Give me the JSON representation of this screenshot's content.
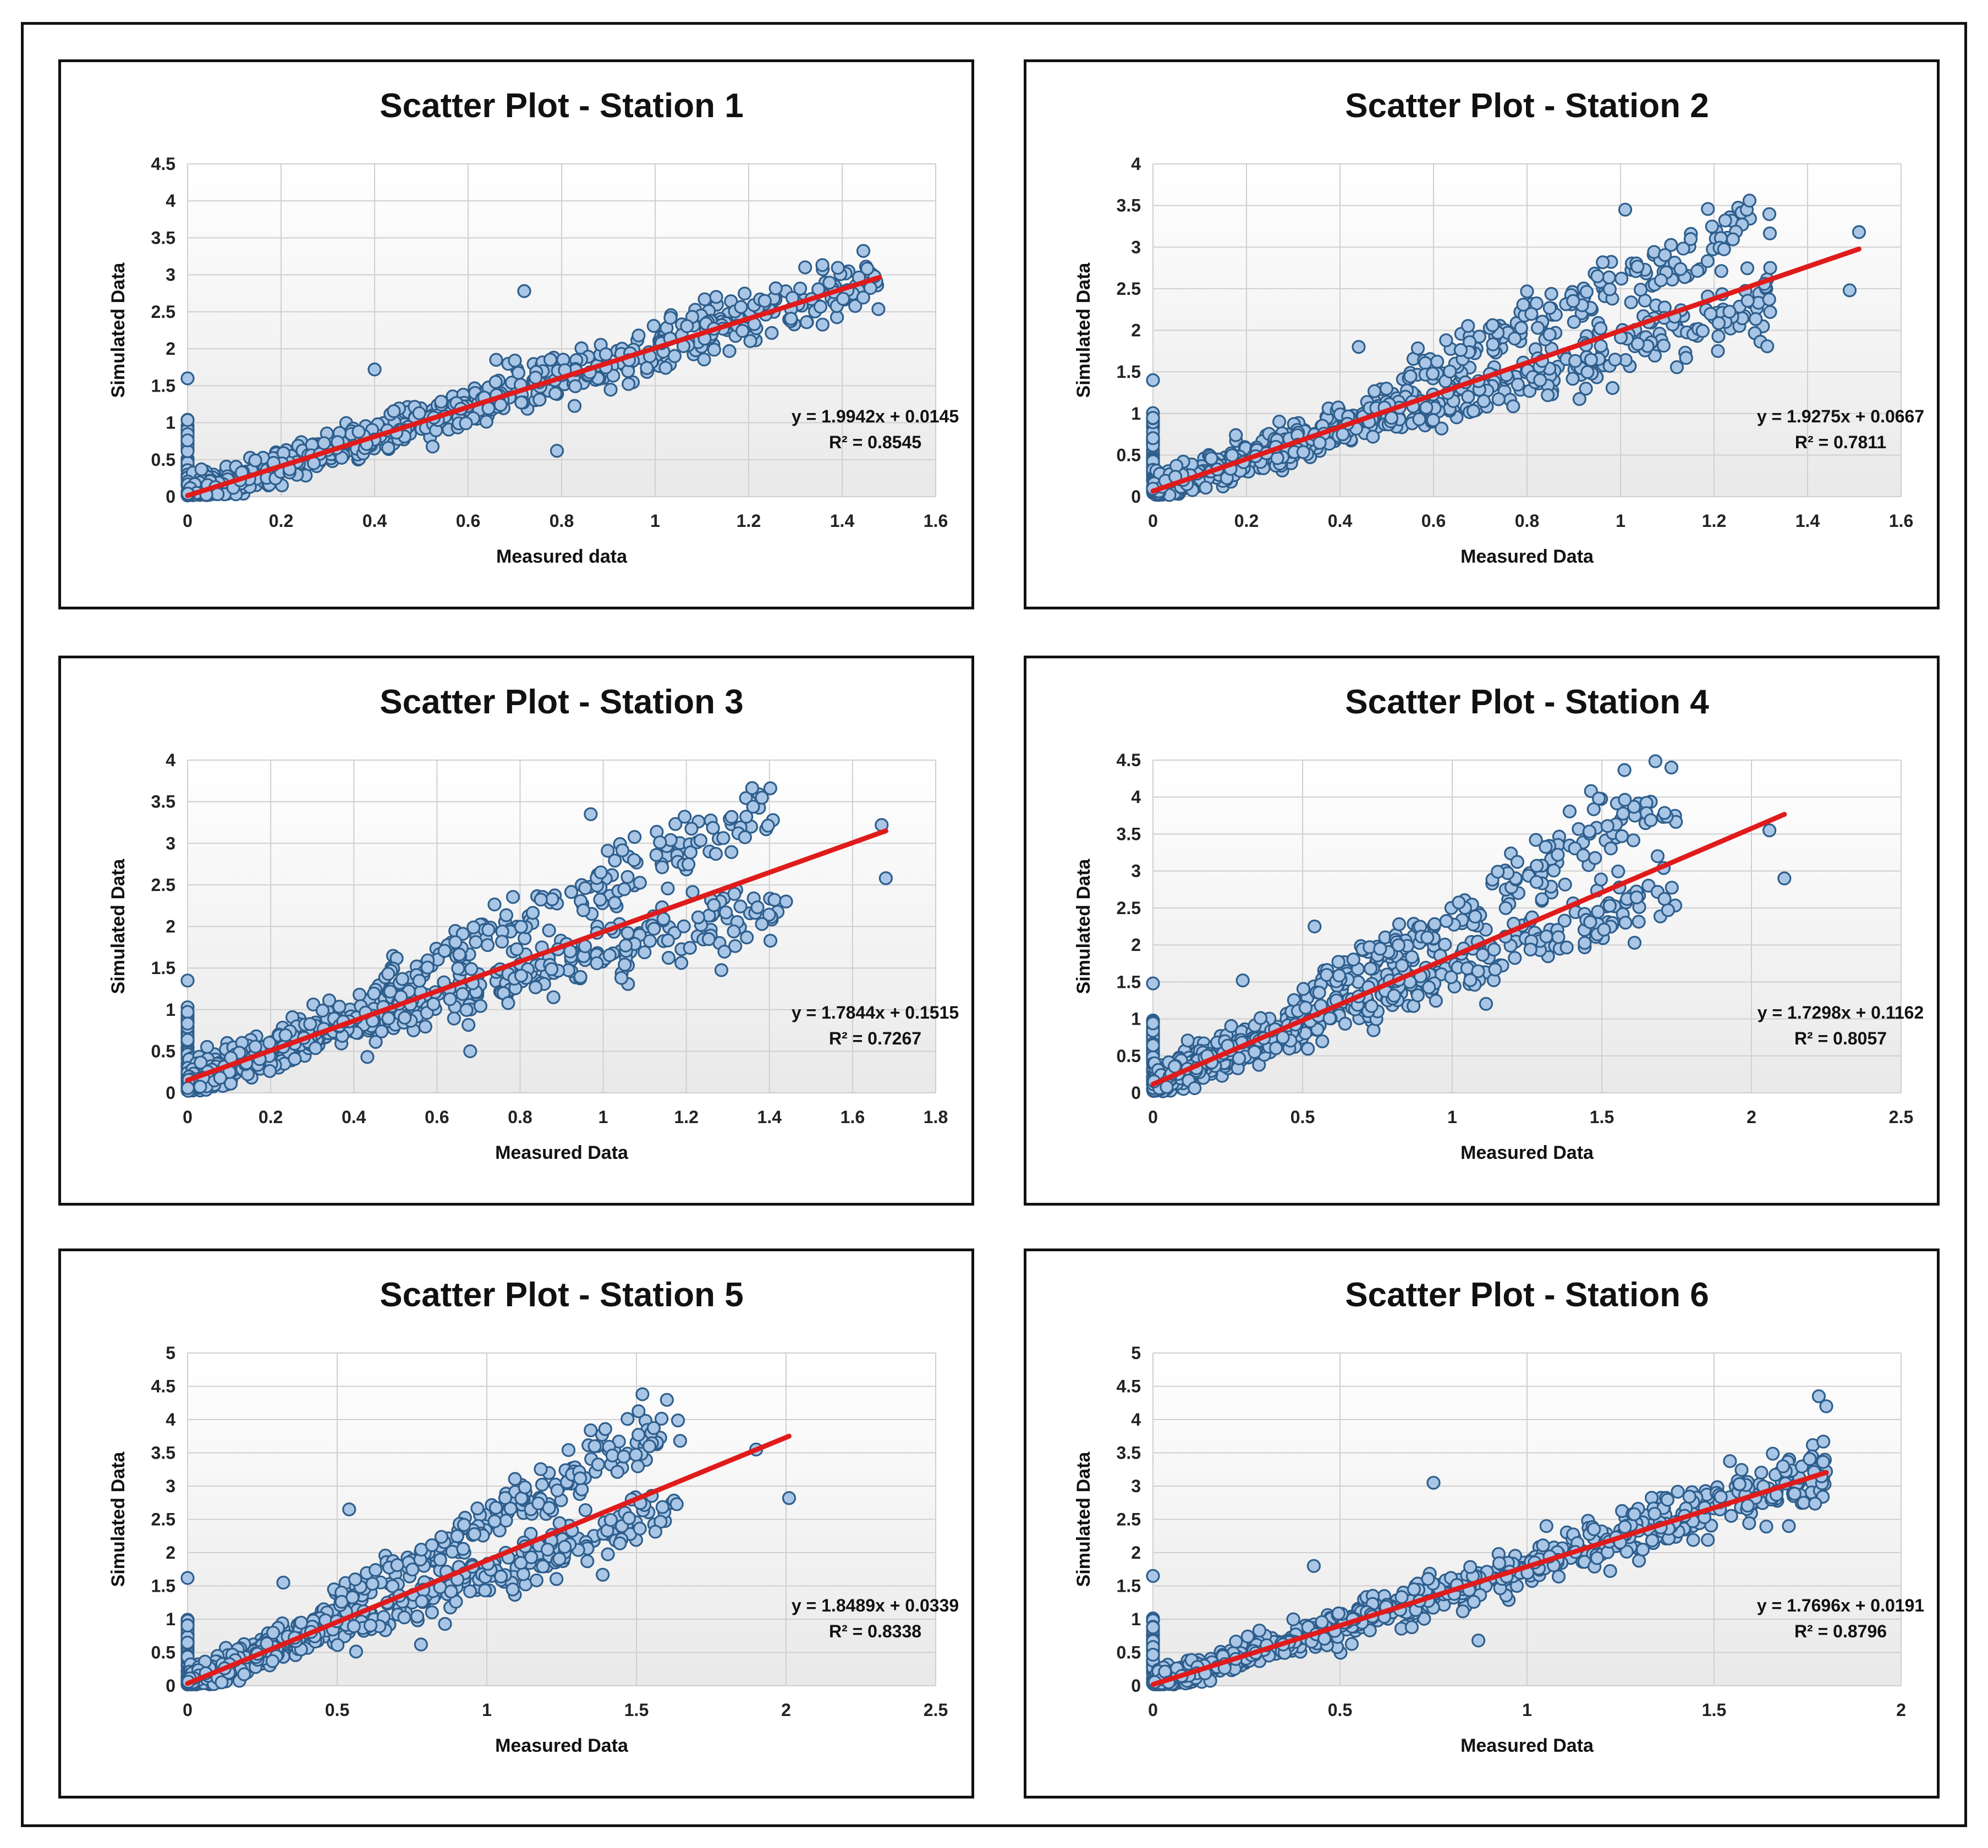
{
  "chart_data": [
    {
      "type": "scatter",
      "title": "Scatter Plot - Station 1",
      "xlabel": "Measured data",
      "ylabel": "Simulated Data",
      "xlim": [
        0,
        1.6
      ],
      "ylim": [
        0,
        4.5
      ],
      "xticks": [
        0,
        0.2,
        0.4,
        0.6,
        0.8,
        1,
        1.2,
        1.4,
        1.6
      ],
      "yticks": [
        0,
        0.5,
        1,
        1.5,
        2,
        2.5,
        3,
        3.5,
        4,
        4.5
      ],
      "trendline": {
        "slope": 1.9942,
        "intercept": 0.0145,
        "x_range": [
          0,
          1.48
        ]
      },
      "equation": "y = 1.9942x + 0.0145",
      "r2": "R² = 0.8545",
      "cloud": {
        "n": 850,
        "x_max": 1.48,
        "x_skew": 1.9,
        "spread": 0.085,
        "split": 0
      },
      "extra_points": [
        [
          0,
          1.6
        ],
        [
          0.72,
          2.78
        ],
        [
          0.4,
          1.72
        ],
        [
          0.79,
          0.62
        ],
        [
          0.66,
          1.85
        ],
        [
          0.7,
          1.84
        ]
      ]
    },
    {
      "type": "scatter",
      "title": "Scatter Plot - Station 2",
      "xlabel": "Measured Data",
      "ylabel": "Simulated Data",
      "xlim": [
        0,
        1.6
      ],
      "ylim": [
        0,
        4
      ],
      "xticks": [
        0,
        0.2,
        0.4,
        0.6,
        0.8,
        1,
        1.2,
        1.4,
        1.6
      ],
      "yticks": [
        0,
        0.5,
        1,
        1.5,
        2,
        2.5,
        3,
        3.5,
        4
      ],
      "trendline": {
        "slope": 1.9275,
        "intercept": 0.0667,
        "x_range": [
          0,
          1.51
        ]
      },
      "equation": "y = 1.9275x + 0.0667",
      "r2": "R² = 0.7811",
      "cloud": {
        "n": 850,
        "x_max": 1.32,
        "x_skew": 1.7,
        "spread": 0.09,
        "split": 0.55
      },
      "extra_points": [
        [
          0,
          1.4
        ],
        [
          0.44,
          1.8
        ],
        [
          1.01,
          3.45
        ],
        [
          1.51,
          3.18
        ],
        [
          1.49,
          2.48
        ],
        [
          1.32,
          2.75
        ],
        [
          1.32,
          2.22
        ]
      ]
    },
    {
      "type": "scatter",
      "title": "Scatter Plot - Station 3",
      "xlabel": "Measured Data",
      "ylabel": "Simulated Data",
      "xlim": [
        0,
        1.8
      ],
      "ylim": [
        0,
        4
      ],
      "xticks": [
        0,
        0.2,
        0.4,
        0.6,
        0.8,
        1,
        1.2,
        1.4,
        1.6,
        1.8
      ],
      "yticks": [
        0,
        0.5,
        1,
        1.5,
        2,
        2.5,
        3,
        3.5,
        4
      ],
      "trendline": {
        "slope": 1.7844,
        "intercept": 0.1515,
        "x_range": [
          0,
          1.68
        ]
      },
      "equation": "y = 1.7844x + 0.1515",
      "r2": "R² = 0.7267",
      "cloud": {
        "n": 850,
        "x_max": 1.42,
        "x_skew": 1.8,
        "spread": 0.1,
        "split": 0.45
      },
      "extra_points": [
        [
          0,
          1.35
        ],
        [
          0.97,
          3.35
        ],
        [
          1.67,
          3.22
        ],
        [
          1.68,
          2.58
        ],
        [
          1.44,
          2.3
        ],
        [
          0.68,
          0.5
        ]
      ]
    },
    {
      "type": "scatter",
      "title": "Scatter Plot - Station 4",
      "xlabel": "Measured Data",
      "ylabel": "Simulated Data",
      "xlim": [
        0,
        2.5
      ],
      "ylim": [
        0,
        4.5
      ],
      "xticks": [
        0,
        0.5,
        1,
        1.5,
        2,
        2.5
      ],
      "yticks": [
        0,
        0.5,
        1,
        1.5,
        2,
        2.5,
        3,
        3.5,
        4,
        4.5
      ],
      "trendline": {
        "slope": 1.7298,
        "intercept": 0.1162,
        "x_range": [
          0,
          2.11
        ]
      },
      "equation": "y = 1.7298x + 0.1162",
      "r2": "R² = 0.8057",
      "cloud": {
        "n": 800,
        "x_max": 1.75,
        "x_skew": 1.8,
        "spread": 0.1,
        "split": 0.5
      },
      "extra_points": [
        [
          0,
          1.48
        ],
        [
          1.49,
          3.98
        ],
        [
          2.11,
          2.9
        ],
        [
          2.06,
          3.55
        ],
        [
          0.54,
          2.25
        ],
        [
          0.3,
          1.52
        ]
      ]
    },
    {
      "type": "scatter",
      "title": "Scatter Plot - Station 5",
      "xlabel": "Measured Data",
      "ylabel": "Simulated Data",
      "xlim": [
        0,
        2.5
      ],
      "ylim": [
        0,
        5
      ],
      "xticks": [
        0,
        0.5,
        1,
        1.5,
        2,
        2.5
      ],
      "yticks": [
        0,
        0.5,
        1,
        1.5,
        2,
        2.5,
        3,
        3.5,
        4,
        4.5,
        5
      ],
      "trendline": {
        "slope": 1.8489,
        "intercept": 0.0339,
        "x_range": [
          0,
          2.01
        ]
      },
      "equation": "y = 1.8489x + 0.0339",
      "r2": "R² = 0.8338",
      "cloud": {
        "n": 800,
        "x_max": 1.65,
        "x_skew": 1.8,
        "spread": 0.1,
        "split": 0.45
      },
      "extra_points": [
        [
          0,
          1.62
        ],
        [
          0.54,
          2.65
        ],
        [
          0.32,
          1.55
        ],
        [
          1.52,
          4.38
        ],
        [
          1.9,
          3.55
        ],
        [
          2.01,
          2.82
        ],
        [
          0.78,
          0.62
        ]
      ]
    },
    {
      "type": "scatter",
      "title": "Scatter Plot - Station 6",
      "xlabel": "Measured Data",
      "ylabel": "Simulated Data",
      "xlim": [
        0,
        2
      ],
      "ylim": [
        0,
        5
      ],
      "xticks": [
        0,
        0.5,
        1,
        1.5,
        2
      ],
      "yticks": [
        0,
        0.5,
        1,
        1.5,
        2,
        2.5,
        3,
        3.5,
        4,
        4.5,
        5
      ],
      "trendline": {
        "slope": 1.7696,
        "intercept": 0.0191,
        "x_range": [
          0,
          1.8
        ]
      },
      "equation": "y = 1.7696x + 0.0191",
      "r2": "R² = 0.8796",
      "cloud": {
        "n": 850,
        "x_max": 1.8,
        "x_skew": 1.7,
        "spread": 0.08,
        "split": 0
      },
      "extra_points": [
        [
          0,
          1.65
        ],
        [
          0.43,
          1.8
        ],
        [
          0.75,
          3.05
        ],
        [
          1.78,
          4.35
        ],
        [
          1.8,
          4.2
        ],
        [
          1.7,
          2.4
        ],
        [
          0.87,
          0.68
        ]
      ]
    }
  ]
}
